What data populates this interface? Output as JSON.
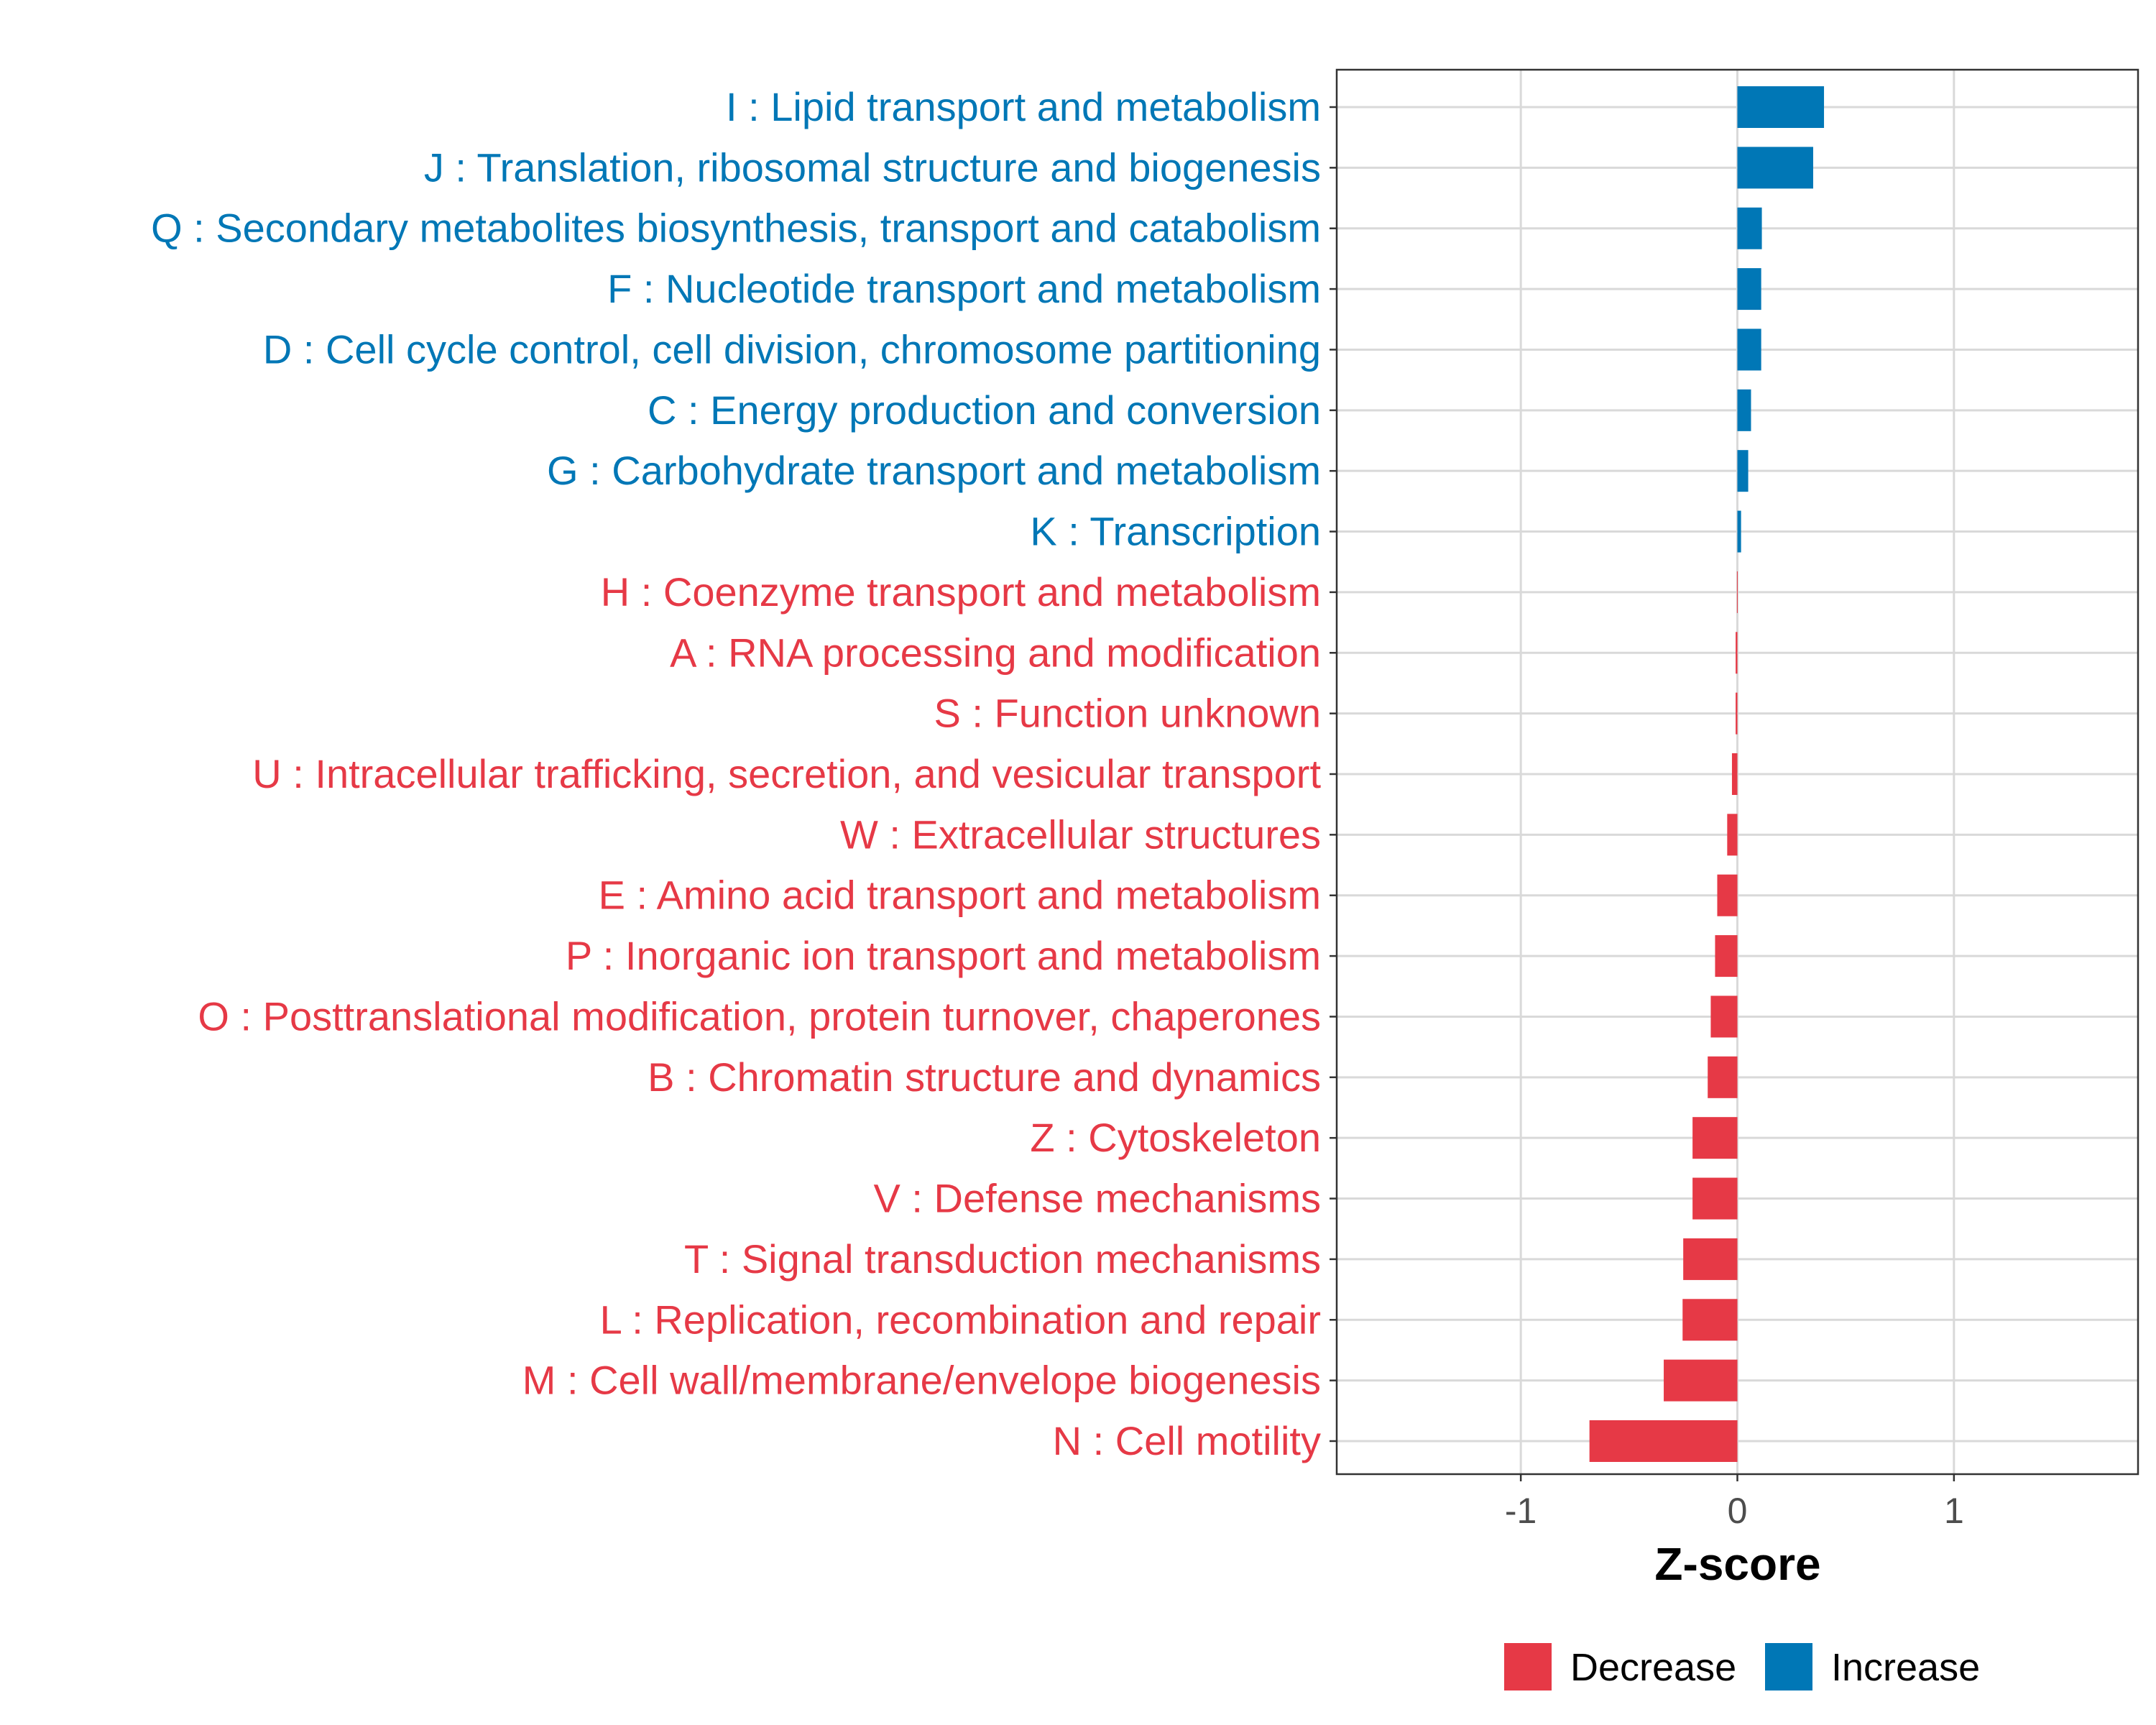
{
  "chart_data": {
    "type": "bar",
    "orientation": "horizontal",
    "title": "",
    "xlabel": "Z-score",
    "ylabel": "",
    "xlim": [
      -1.85,
      1.85
    ],
    "xticks": [
      -1,
      0,
      1
    ],
    "xtick_labels": [
      "-1",
      "0",
      "1"
    ],
    "grid": true,
    "legend": {
      "placement": "bottom",
      "entries": [
        {
          "label": "Decrease",
          "color": "#E63946"
        },
        {
          "label": "Increase",
          "color": "#0077B6"
        }
      ]
    },
    "categories": [
      "I : Lipid transport and metabolism",
      "J : Translation, ribosomal structure and biogenesis",
      "Q : Secondary metabolites biosynthesis, transport and catabolism",
      "F : Nucleotide transport and metabolism",
      "D : Cell cycle control, cell division, chromosome partitioning",
      "C : Energy production and conversion",
      "G : Carbohydrate transport and metabolism",
      "K : Transcription",
      "H : Coenzyme transport and metabolism",
      "A : RNA processing and modification",
      "S : Function unknown",
      "U : Intracellular trafficking, secretion, and vesicular transport",
      "W : Extracellular structures",
      "E : Amino acid transport and metabolism",
      "P : Inorganic ion transport and metabolism",
      "O : Posttranslational modification, protein turnover, chaperones",
      "B : Chromatin structure and dynamics",
      "Z : Cytoskeleton",
      "V : Defense mechanisms",
      "T : Signal transduction mechanisms",
      "L : Replication, recombination and repair",
      "M : Cell wall/membrane/envelope biogenesis",
      "N : Cell motility"
    ],
    "values": [
      0.4,
      0.35,
      0.113,
      0.11,
      0.11,
      0.063,
      0.05,
      0.017,
      -0.002,
      -0.008,
      -0.008,
      -0.025,
      -0.047,
      -0.093,
      -0.103,
      -0.123,
      -0.137,
      -0.207,
      -0.207,
      -0.25,
      -0.253,
      -0.34,
      -0.683
    ],
    "groups": [
      "Increase",
      "Increase",
      "Increase",
      "Increase",
      "Increase",
      "Increase",
      "Increase",
      "Increase",
      "Decrease",
      "Decrease",
      "Decrease",
      "Decrease",
      "Decrease",
      "Decrease",
      "Decrease",
      "Decrease",
      "Decrease",
      "Decrease",
      "Decrease",
      "Decrease",
      "Decrease",
      "Decrease",
      "Decrease"
    ]
  }
}
